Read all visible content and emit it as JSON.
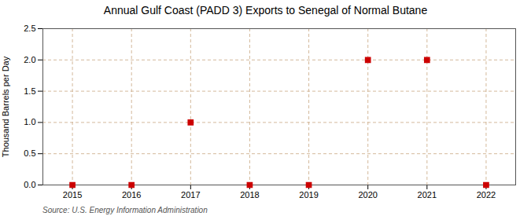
{
  "chart_data": {
    "type": "scatter",
    "title": "Annual Gulf Coast (PADD 3) Exports to Senegal of Normal Butane",
    "ylabel": "Thousand Barrels per Day",
    "source": "Source: U.S. Energy Information Administration",
    "x": [
      2015,
      2016,
      2017,
      2018,
      2019,
      2020,
      2021,
      2022
    ],
    "values": [
      0,
      0,
      1.0,
      0,
      0,
      2.0,
      2.0,
      0
    ],
    "color": "#cc0000",
    "marker": "square",
    "xlim": [
      2014.5,
      2022.5
    ],
    "ylim": [
      0,
      2.5
    ],
    "xticks": [
      2015,
      2016,
      2017,
      2018,
      2019,
      2020,
      2021,
      2022
    ],
    "yticks": [
      {
        "value": 0.0,
        "label": "0.0"
      },
      0.5,
      {
        "value": 1.0,
        "label": "1.0"
      },
      1.5,
      {
        "value": 2.0,
        "label": "2.0"
      },
      2.5
    ],
    "grid": true
  }
}
